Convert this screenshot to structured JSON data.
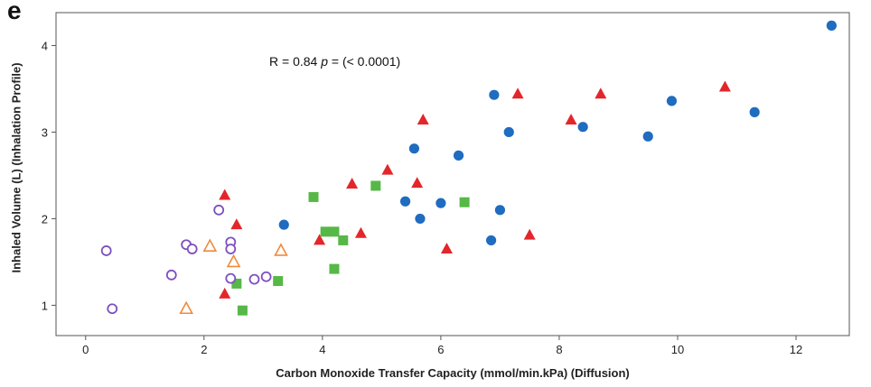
{
  "panel_letter": "e",
  "annotation": {
    "prefix": "R = 0.84 ",
    "p_symbol": "p",
    "suffix": " = (< 0.0001)"
  },
  "chart_data": {
    "type": "scatter",
    "xlabel": "Carbon Monoxide Transfer Capacity (mmol/min.kPa) (Diffusion)",
    "ylabel": "Inhaled Volume (L) (Inhalation Profile)",
    "xlim": [
      -0.5,
      12.9
    ],
    "ylim": [
      0.65,
      4.38
    ],
    "xticks": [
      0,
      2,
      4,
      6,
      8,
      10,
      12
    ],
    "yticks": [
      1,
      2,
      3,
      4
    ],
    "grid": false,
    "series": [
      {
        "marker": "circle-filled",
        "color": "#1f6cc0",
        "points": [
          [
            12.6,
            4.23
          ],
          [
            6.9,
            3.43
          ],
          [
            9.9,
            3.36
          ],
          [
            11.3,
            3.23
          ],
          [
            8.4,
            3.06
          ],
          [
            7.15,
            3.0
          ],
          [
            9.5,
            2.95
          ],
          [
            5.55,
            2.81
          ],
          [
            6.3,
            2.73
          ],
          [
            3.35,
            1.93
          ],
          [
            5.4,
            2.2
          ],
          [
            6.0,
            2.18
          ],
          [
            7.0,
            2.1
          ],
          [
            5.65,
            2.0
          ],
          [
            6.85,
            1.75
          ]
        ]
      },
      {
        "marker": "triangle-filled",
        "color": "#e3262a",
        "points": [
          [
            7.3,
            3.44
          ],
          [
            8.7,
            3.44
          ],
          [
            10.8,
            3.52
          ],
          [
            5.7,
            3.14
          ],
          [
            8.2,
            3.14
          ],
          [
            5.1,
            2.56
          ],
          [
            4.5,
            2.4
          ],
          [
            5.6,
            2.41
          ],
          [
            2.35,
            2.27
          ],
          [
            2.55,
            1.93
          ],
          [
            3.95,
            1.75
          ],
          [
            4.65,
            1.83
          ],
          [
            6.1,
            1.65
          ],
          [
            7.5,
            1.81
          ],
          [
            2.35,
            1.13
          ]
        ]
      },
      {
        "marker": "square-filled",
        "color": "#56b847",
        "points": [
          [
            3.85,
            2.25
          ],
          [
            4.9,
            2.38
          ],
          [
            6.4,
            2.19
          ],
          [
            4.05,
            1.85
          ],
          [
            4.2,
            1.85
          ],
          [
            4.35,
            1.75
          ],
          [
            4.2,
            1.42
          ],
          [
            2.55,
            1.25
          ],
          [
            3.25,
            1.28
          ],
          [
            2.65,
            0.94
          ]
        ]
      },
      {
        "marker": "triangle-open",
        "color": "#f08a3c",
        "points": [
          [
            2.1,
            1.68
          ],
          [
            3.3,
            1.63
          ],
          [
            2.5,
            1.5
          ],
          [
            1.7,
            0.96
          ]
        ]
      },
      {
        "marker": "circle-open",
        "color": "#7e4fbf",
        "points": [
          [
            2.25,
            2.1
          ],
          [
            0.35,
            1.63
          ],
          [
            1.7,
            1.7
          ],
          [
            1.8,
            1.65
          ],
          [
            2.45,
            1.73
          ],
          [
            2.45,
            1.65
          ],
          [
            1.45,
            1.35
          ],
          [
            2.45,
            1.31
          ],
          [
            2.85,
            1.3
          ],
          [
            3.05,
            1.33
          ],
          [
            0.45,
            0.96
          ]
        ]
      }
    ]
  }
}
